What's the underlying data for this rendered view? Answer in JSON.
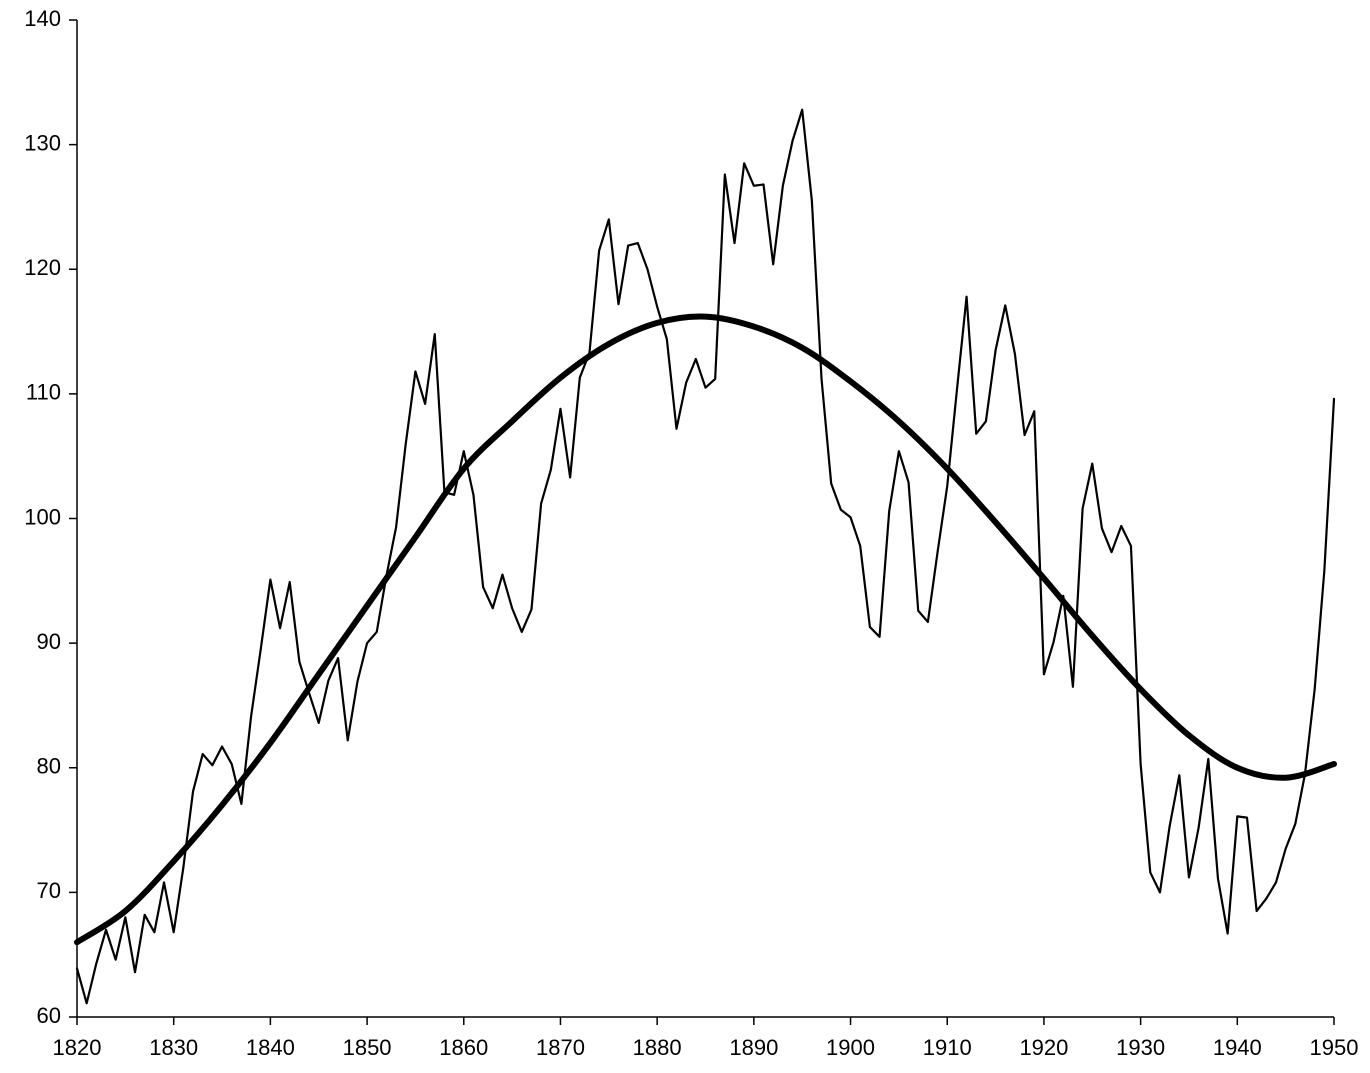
{
  "chart_data": {
    "type": "line",
    "xlim": [
      1820,
      1950
    ],
    "xticks": [
      1820,
      1830,
      1840,
      1850,
      1860,
      1870,
      1880,
      1890,
      1900,
      1910,
      1920,
      1930,
      1940,
      1950
    ],
    "ylim": [
      60,
      140
    ],
    "yticks": [
      60,
      70,
      80,
      90,
      100,
      110,
      120,
      130,
      140
    ],
    "grid": false,
    "series": [
      {
        "color": "#000000",
        "x": [
          1820,
          1821,
          1822,
          1823,
          1824,
          1825,
          1826,
          1827,
          1828,
          1829,
          1830,
          1831,
          1832,
          1833,
          1834,
          1835,
          1836,
          1837,
          1838,
          1839,
          1840,
          1841,
          1842,
          1843,
          1844,
          1845,
          1846,
          1847,
          1848,
          1849,
          1850,
          1851,
          1852,
          1853,
          1854,
          1855,
          1856,
          1857,
          1858,
          1859,
          1860,
          1861,
          1862,
          1863,
          1864,
          1865,
          1866,
          1867,
          1868,
          1869,
          1870,
          1871,
          1872,
          1873,
          1874,
          1875,
          1876,
          1877,
          1878,
          1879,
          1880,
          1881,
          1882,
          1883,
          1884,
          1885,
          1886,
          1887,
          1888,
          1889,
          1890,
          1891,
          1892,
          1893,
          1894,
          1895,
          1896,
          1897,
          1898,
          1899,
          1900,
          1901,
          1902,
          1903,
          1904,
          1905,
          1906,
          1907,
          1908,
          1909,
          1910,
          1911,
          1912,
          1913,
          1914,
          1915,
          1916,
          1917,
          1918,
          1919,
          1920,
          1921,
          1922,
          1923,
          1924,
          1925,
          1926,
          1927,
          1928,
          1929,
          1930,
          1931,
          1932,
          1933,
          1934,
          1935,
          1936,
          1937,
          1938,
          1939,
          1940,
          1941,
          1942,
          1943,
          1944,
          1945,
          1946,
          1947,
          1948,
          1949,
          1950
        ],
        "values": [
          63.9,
          61.1,
          64.3,
          67,
          64.6,
          68,
          63.6,
          68.2,
          66.8,
          70.8,
          66.8,
          72,
          78.1,
          81.1,
          80.2,
          81.7,
          80.3,
          77.1,
          84.1,
          89.5,
          95.1,
          91.2,
          94.9,
          88.5,
          86,
          83.6,
          87,
          88.8,
          82.2,
          86.9,
          90,
          90.9,
          95.4,
          99.3,
          106,
          111.8,
          109.2,
          114.8,
          102.1,
          101.9,
          105.4,
          101.9,
          94.5,
          92.8,
          95.5,
          92.8,
          90.9,
          92.7,
          101.2,
          103.9,
          108.8,
          103.3,
          111.3,
          113.3,
          121.5,
          124,
          117.2,
          121.9,
          122.1,
          120,
          117,
          114.4,
          107.2,
          110.9,
          112.8,
          110.5,
          111.2,
          127.6,
          122.1,
          128.5,
          126.7,
          126.8,
          120.4,
          126.7,
          130.3,
          132.8,
          125.5,
          111.2,
          102.8,
          100.7,
          100.1,
          97.8,
          91.3,
          90.5,
          100.6,
          105.4,
          102.9,
          92.6,
          91.7,
          97.3,
          102.6,
          110.3,
          117.8,
          106.8,
          107.8,
          113.5,
          117.1,
          113.2,
          106.7,
          108.6,
          87.5,
          90.1,
          93.8,
          86.5,
          100.8,
          104.4,
          99.2,
          97.3,
          99.4,
          97.8,
          80.3,
          71.6,
          70,
          75.3,
          79.4,
          71.2,
          75.2,
          80.7,
          71.1,
          66.7,
          76.1,
          76,
          68.5,
          69.5,
          70.8,
          73.5,
          75.5,
          79.5,
          86.3,
          95.8,
          109.6
        ]
      },
      {
        "color": "#000000",
        "x": [
          1820,
          1825,
          1830,
          1835,
          1840,
          1845,
          1850,
          1855,
          1860,
          1865,
          1870,
          1875,
          1880,
          1885,
          1890,
          1895,
          1900,
          1905,
          1910,
          1915,
          1920,
          1925,
          1930,
          1935,
          1940,
          1945,
          1950
        ],
        "values": [
          66,
          68.5,
          72.5,
          77,
          82,
          87.5,
          93,
          98.5,
          104,
          107.8,
          111.3,
          114,
          115.7,
          116.2,
          115.4,
          113.7,
          111,
          107.8,
          104,
          99.7,
          95.2,
          90.6,
          86.3,
          82.6,
          80,
          79.2,
          80.3
        ]
      }
    ]
  }
}
